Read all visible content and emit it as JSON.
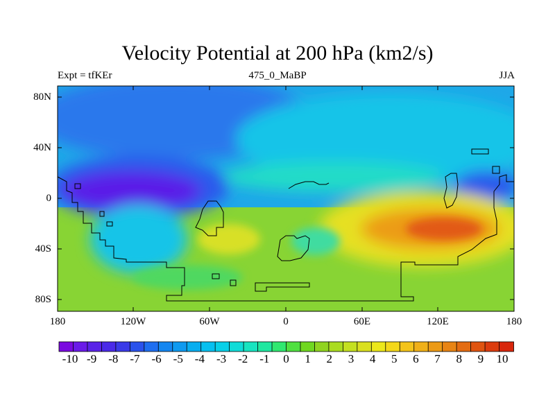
{
  "header": {
    "title": "Velocity Potential at 200 hPa (km2/s)",
    "left_label": "Expt = tfKEr",
    "center_label": "475_0_MaBP",
    "right_label": "JJA"
  },
  "axes": {
    "y_ticks": [
      "80N",
      "40N",
      "0",
      "40S",
      "80S"
    ],
    "x_ticks": [
      "180",
      "120W",
      "60W",
      "0",
      "60E",
      "120E",
      "180"
    ]
  },
  "colorbar": {
    "labels": [
      "-10",
      "-9",
      "-8",
      "-7",
      "-6",
      "-5",
      "-4",
      "-3",
      "-2",
      "-1",
      "0",
      "1",
      "2",
      "3",
      "4",
      "5",
      "6",
      "7",
      "8",
      "9",
      "10"
    ],
    "colors": [
      "#7a0ae0",
      "#6a1ae8",
      "#5a22e8",
      "#4a2ae8",
      "#3a3ae8",
      "#2a52ec",
      "#1e6ef0",
      "#1486f0",
      "#0e9af0",
      "#08aef0",
      "#06c0f0",
      "#08d0e8",
      "#10dcd8",
      "#18e4c0",
      "#20e8a0",
      "#30e870",
      "#50e040",
      "#70d820",
      "#90d420",
      "#aadc20",
      "#c4e020",
      "#dae020",
      "#ece81a",
      "#f4d81a",
      "#f4c41a",
      "#f0b018",
      "#ec9a16",
      "#e88414",
      "#e46c12",
      "#e05410",
      "#dc3c0e",
      "#d8260c"
    ]
  },
  "map": {
    "colors": {
      "neg_strong": "#5a1ae8",
      "neg_mid": "#2a5aec",
      "neg_weak": "#1e9ae8",
      "cyan": "#18c8e8",
      "teal": "#20dcc8",
      "green": "#68d838",
      "yellowgreen": "#a8dc30",
      "yellow": "#e6e020",
      "orange": "#ec9c18",
      "red": "#e25a12"
    }
  }
}
